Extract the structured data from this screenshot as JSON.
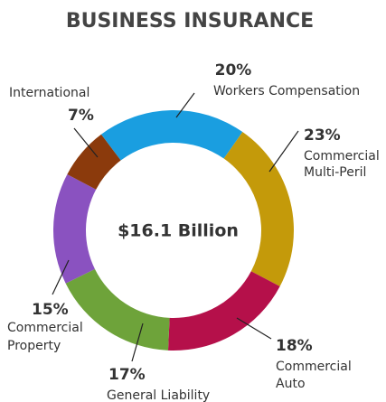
{
  "chart_data": {
    "type": "donut",
    "title": "BUSINESS INSURANCE",
    "center_label": "$16.1 Billion",
    "categories": [
      [
        "Workers Compensation"
      ],
      [
        "Commercial",
        "Multi-Peril"
      ],
      [
        "Commercial",
        "Auto"
      ],
      [
        "General Liability"
      ],
      [
        "Commercial",
        "Property"
      ],
      [
        "International"
      ]
    ],
    "values": [
      20,
      23,
      18,
      17,
      15,
      7
    ],
    "value_labels": [
      "20%",
      "23%",
      "18%",
      "17%",
      "15%",
      "7%"
    ],
    "colors": [
      "#1a9ee0",
      "#c49a0a",
      "#b5104a",
      "#6ea33a",
      "#8a52c0",
      "#8b3a0c"
    ]
  }
}
